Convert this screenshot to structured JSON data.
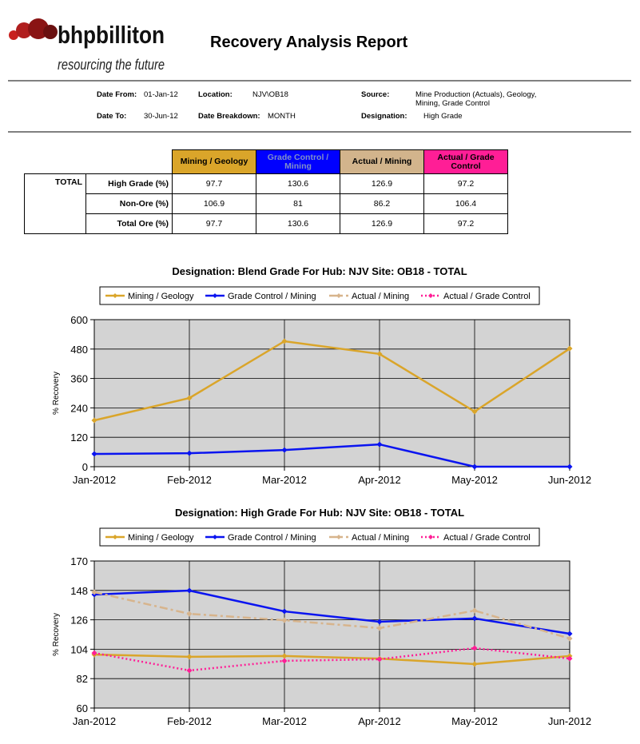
{
  "header": {
    "logo_name": "bhpbilliton",
    "tagline": "resourcing the future",
    "title": "Recovery Analysis Report"
  },
  "info": [
    {
      "label": "Date From:",
      "value": "01-Jan-12"
    },
    {
      "label": "Location:",
      "value": "NJV\\OB18"
    },
    {
      "label": "Source:",
      "value": "Mine Production (Actuals), Geology, Mining, Grade Control"
    },
    {
      "label": "Date To:",
      "value": "30-Jun-12"
    },
    {
      "label": "Date Breakdown:",
      "value": "MONTH"
    },
    {
      "label": "Designation:",
      "value": "High Grade"
    }
  ],
  "table": {
    "group": "TOTAL",
    "columns": [
      {
        "label": "Mining / Geology",
        "color": "#daa52a"
      },
      {
        "label": "Grade Control / Mining",
        "color": "#0000ff"
      },
      {
        "label": "Actual / Mining",
        "color": "#d2b48c"
      },
      {
        "label": "Actual / Grade Control",
        "color": "#ff1e96"
      }
    ],
    "rows": [
      {
        "label": "High Grade (%)",
        "values": [
          97.7,
          130.6,
          126.9,
          97.2
        ]
      },
      {
        "label": "Non-Ore (%)",
        "values": [
          106.9,
          81,
          86.2,
          106.4
        ]
      },
      {
        "label": "Total Ore (%)",
        "values": [
          97.7,
          130.6,
          126.9,
          97.2
        ]
      }
    ]
  },
  "chart_data": [
    {
      "type": "line",
      "title": "Designation: Blend Grade For Hub: NJV  Site: OB18   - TOTAL",
      "y_label": "% Recovery",
      "legend": "top",
      "grid": true,
      "categories": [
        "Jan-2012",
        "Feb-2012",
        "Mar-2012",
        "Apr-2012",
        "May-2012",
        "Jun-2012"
      ],
      "ylim": [
        0,
        600
      ],
      "yticks": [
        0,
        120,
        240,
        360,
        480,
        600
      ],
      "series": [
        {
          "name": "Mining / Geology",
          "color": "#daa52a",
          "dash": "solid",
          "values": [
            189,
            280,
            512,
            460,
            225,
            482
          ]
        },
        {
          "name": "Grade Control / Mining",
          "color": "#0a14f0",
          "dash": "solid",
          "values": [
            52,
            55,
            68,
            91,
            0,
            0
          ]
        },
        {
          "name": "Actual / Mining",
          "color": "#d7b48c",
          "dash": "dashdot",
          "values": [
            null,
            null,
            null,
            null,
            null,
            null
          ]
        },
        {
          "name": "Actual / Grade Control",
          "color": "#ff1e96",
          "dash": "dot",
          "values": [
            null,
            null,
            null,
            null,
            null,
            null
          ]
        }
      ]
    },
    {
      "type": "line",
      "title": "Designation: High Grade For Hub: NJV  Site: OB18   - TOTAL",
      "y_label": "% Recovery",
      "legend": "top",
      "grid": true,
      "categories": [
        "Jan-2012",
        "Feb-2012",
        "Mar-2012",
        "Apr-2012",
        "May-2012",
        "Jun-2012"
      ],
      "ylim": [
        60,
        170
      ],
      "yticks": [
        60,
        82,
        104,
        126,
        148,
        170
      ],
      "series": [
        {
          "name": "Mining / Geology",
          "color": "#daa52a",
          "dash": "solid",
          "values": [
            100,
            98.3,
            98.9,
            97,
            92.9,
            98.9
          ]
        },
        {
          "name": "Grade Control / Mining",
          "color": "#0a14f0",
          "dash": "solid",
          "values": [
            144.9,
            147.9,
            132.3,
            124.6,
            127,
            115.6
          ]
        },
        {
          "name": "Actual / Mining",
          "color": "#d7b48c",
          "dash": "dashdot",
          "values": [
            146.7,
            130.5,
            125.7,
            119.8,
            132.9,
            112
          ]
        },
        {
          "name": "Actual / Grade Control",
          "color": "#ff1e96",
          "dash": "dot",
          "values": [
            101.2,
            88.1,
            95.3,
            96.5,
            104.8,
            97
          ]
        }
      ]
    }
  ]
}
